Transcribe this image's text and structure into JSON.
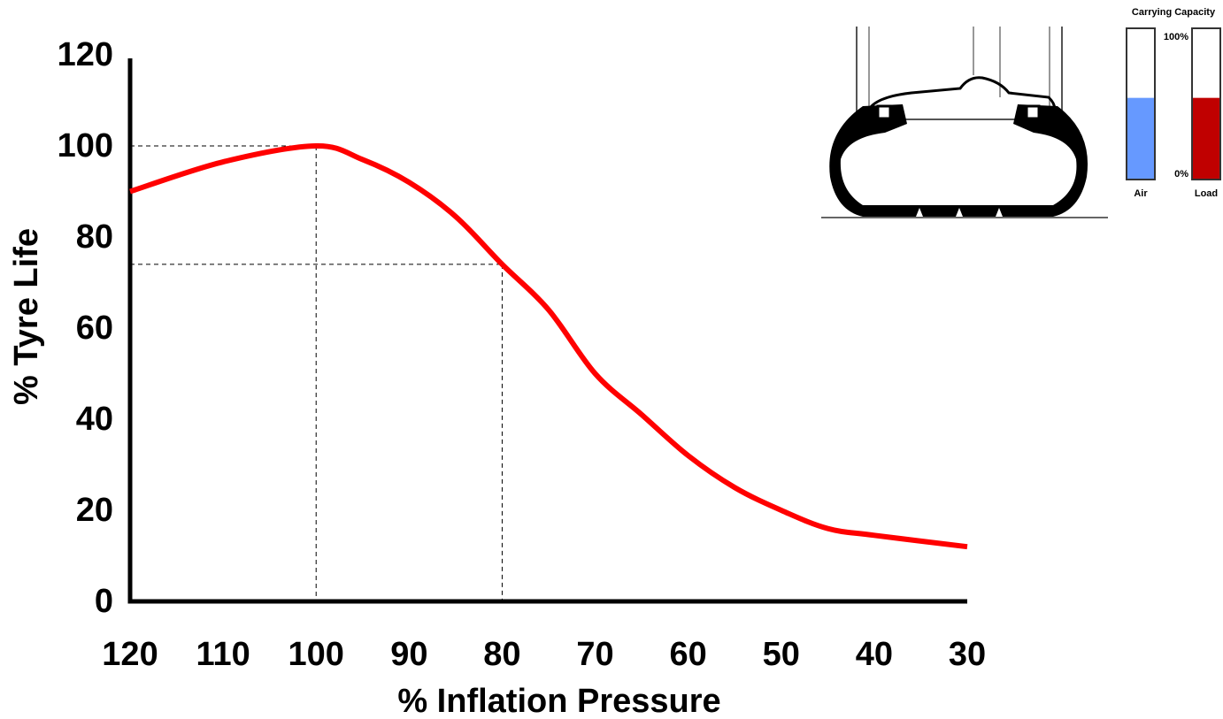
{
  "chart_data": [
    {
      "type": "line",
      "x_label": "% Inflation Pressure",
      "y_label": "% Tyre Life",
      "x": [
        120,
        110,
        100,
        95,
        90,
        85,
        80,
        75,
        70,
        65,
        60,
        55,
        50,
        45,
        40,
        30
      ],
      "series": [
        {
          "color": "#ff0000",
          "values": [
            90,
            96.5,
            100,
            97,
            92,
            84.5,
            74,
            64,
            50,
            41,
            32,
            25,
            20,
            16,
            14.5,
            12
          ]
        }
      ],
      "reference_points": [
        {
          "x": 100,
          "y": 100
        },
        {
          "x": 80,
          "y": 74
        }
      ],
      "xlim": [
        120,
        30
      ],
      "xticks": [
        120,
        110,
        100,
        90,
        80,
        70,
        60,
        50,
        40,
        30
      ],
      "ylim": [
        0,
        120
      ],
      "yticks": [
        0,
        20,
        40,
        60,
        80,
        100,
        120
      ]
    },
    {
      "type": "bar",
      "title": "Carrying Capacity",
      "categories": [
        "Air",
        "Load"
      ],
      "values": [
        54,
        54
      ],
      "colors": [
        "#6699ff",
        "#c00000"
      ],
      "ylim": [
        0,
        100
      ],
      "yticks": [
        {
          "value": 0,
          "label": "0%"
        },
        {
          "value": 100,
          "label": "100%"
        }
      ]
    }
  ]
}
